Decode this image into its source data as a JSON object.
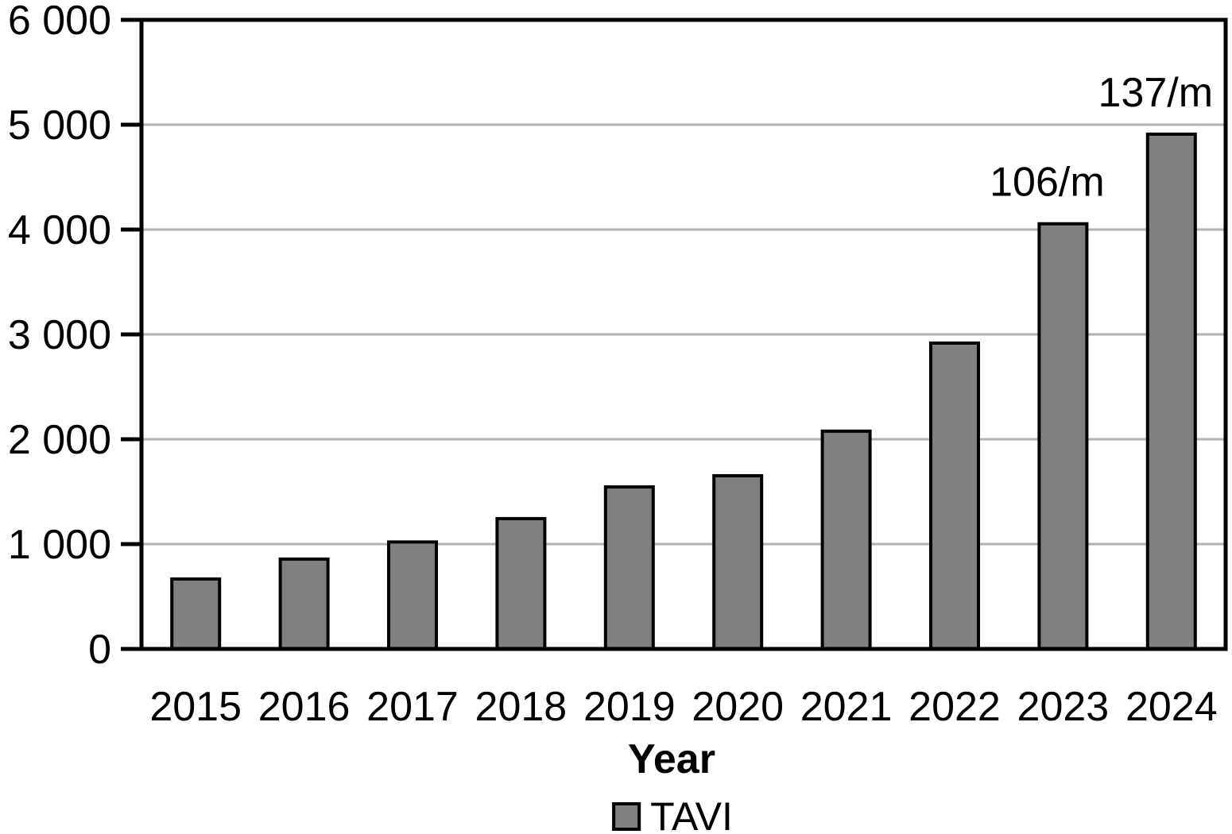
{
  "chart_data": {
    "type": "bar",
    "title": "",
    "xlabel": "Year",
    "ylabel": "",
    "categories": [
      "2015",
      "2016",
      "2017",
      "2018",
      "2019",
      "2020",
      "2021",
      "2022",
      "2023",
      "2024"
    ],
    "values": [
      667,
      857,
      1020,
      1243,
      1545,
      1652,
      2077,
      2917,
      4055,
      4910
    ],
    "series_name": "TAVI",
    "ylim": [
      0,
      6000
    ],
    "ytick_values": [
      0,
      1000,
      2000,
      3000,
      4000,
      5000,
      6000
    ],
    "ytick_labels": [
      "0",
      "1 000",
      "2 000",
      "3 000",
      "4 000",
      "5 000",
      "6 000"
    ],
    "grid": true,
    "legend_position": "bottom",
    "legend": [
      {
        "label": "TAVI",
        "color": "#808080"
      }
    ],
    "annotations": [
      {
        "category": "2023",
        "text": "106/m"
      },
      {
        "category": "2024",
        "text": "137/m"
      }
    ],
    "colors": {
      "bar_fill": "#808080",
      "bar_stroke": "#000000",
      "gridline": "#b3b3b3",
      "axis": "#000000",
      "background": "#ffffff",
      "text": "#000000"
    }
  }
}
